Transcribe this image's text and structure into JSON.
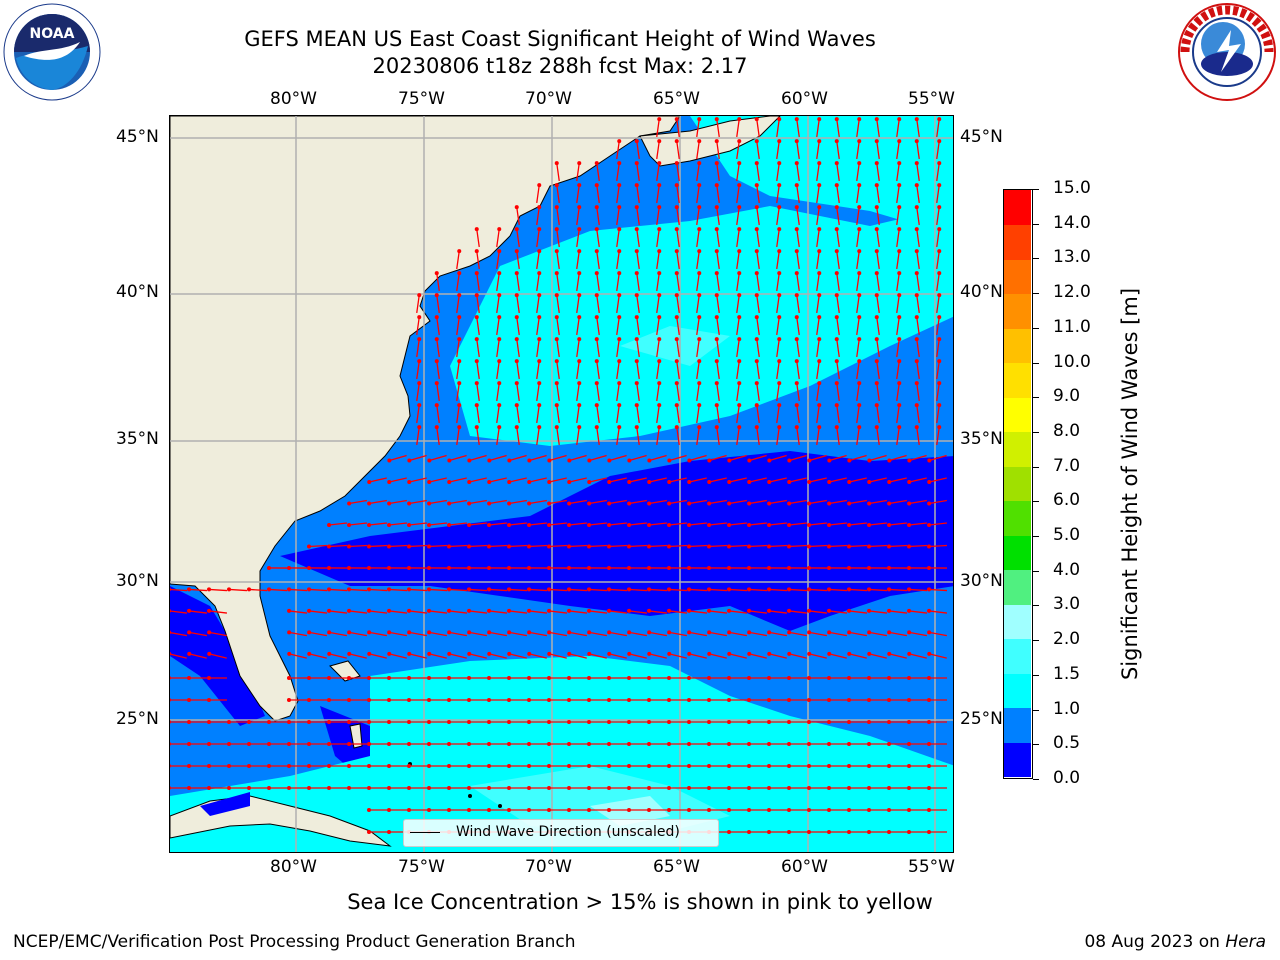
{
  "title": {
    "line1": "GEFS MEAN US East Coast Significant Height of Wind Waves",
    "line2": "20230806 t18z 288h fcst   Max: 2.17"
  },
  "logos": {
    "noara_text": "NOAA",
    "nws_ring_text": "NATIONAL WEATHER SERVICE"
  },
  "map": {
    "lon_ticks_top": [
      "80°W",
      "75°W",
      "70°W",
      "65°W",
      "60°W",
      "55°W"
    ],
    "lon_ticks_bottom": [
      "80°W",
      "75°W",
      "70°W",
      "65°W",
      "60°W",
      "55°W"
    ],
    "lat_ticks_left": [
      "45°N",
      "40°N",
      "35°N",
      "30°N",
      "25°N"
    ],
    "lat_ticks_right": [
      "45°N",
      "40°N",
      "35°N",
      "30°N",
      "25°N"
    ],
    "legend_label": "Wind Wave Direction (unscaled)",
    "colors": {
      "land": "#efeddc",
      "level_0_0p5": "#0000ff",
      "level_0p5_1": "#0080ff",
      "level_1_1p5": "#00ffff",
      "level_1p5_2": "#40ffff",
      "level_2_2p5": "#a0ffff",
      "arrows": "#ff0000",
      "grid": "#b0b0b0"
    }
  },
  "colorbar": {
    "label": "Significant Height of Wind Waves [m]",
    "ticks": [
      "0.0",
      "0.5",
      "1.0",
      "1.5",
      "2.0",
      "3.0",
      "4.0",
      "5.0",
      "6.0",
      "7.0",
      "8.0",
      "9.0",
      "10.0",
      "11.0",
      "12.0",
      "13.0",
      "14.0",
      "15.0"
    ],
    "colors": [
      "#0000ff",
      "#0080ff",
      "#00ffff",
      "#40ffff",
      "#a0ffff",
      "#50f080",
      "#00e000",
      "#50e000",
      "#a0e000",
      "#d0f000",
      "#ffff00",
      "#ffe000",
      "#ffc000",
      "#ff9000",
      "#ff7000",
      "#ff4000",
      "#ff0000"
    ]
  },
  "footer": {
    "sea_ice_note": "Sea Ice Concentration > 15% is shown in pink to yellow",
    "left": "NCEP/EMC/Verification Post Processing Product Generation Branch",
    "right_date": "08 Aug 2023 on ",
    "right_host": "Hera"
  }
}
